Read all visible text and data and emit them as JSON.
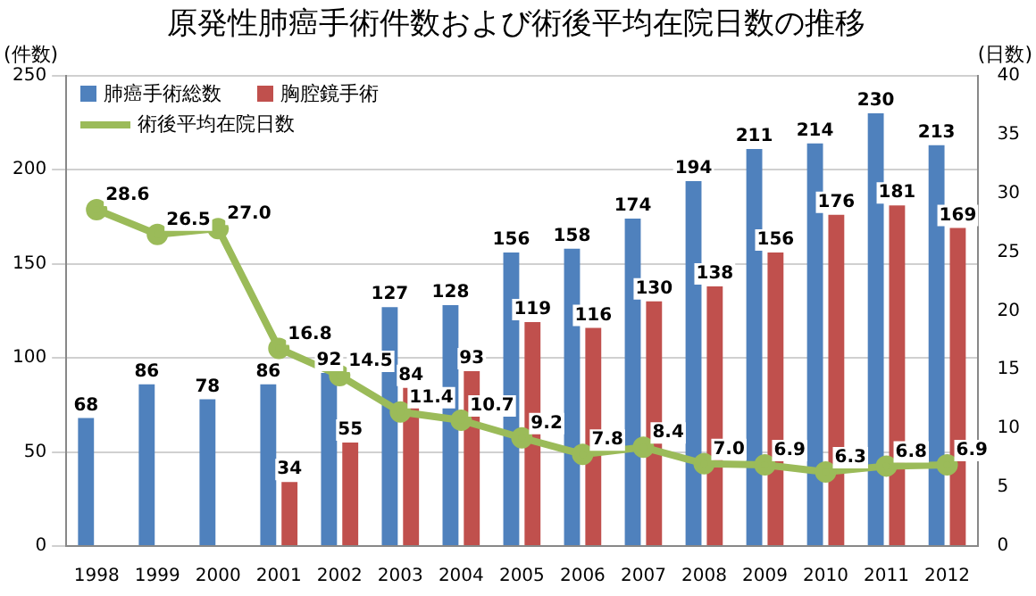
{
  "chart_data": {
    "type": "bar",
    "title": "原発性肺癌手術件数および術後平均在院日数の推移",
    "ylabel": "(件数)",
    "y2label": "(日数)",
    "categories": [
      "1998",
      "1999",
      "2000",
      "2001",
      "2002",
      "2003",
      "2004",
      "2005",
      "2006",
      "2007",
      "2008",
      "2009",
      "2010",
      "2011",
      "2012"
    ],
    "series": [
      {
        "name": "肺癌手術総数",
        "color": "#4f81bd",
        "values": [
          68,
          86,
          78,
          86,
          92,
          127,
          128,
          156,
          158,
          174,
          194,
          211,
          214,
          230,
          213
        ],
        "value_labels": [
          "68",
          "86",
          "78",
          "86",
          "92",
          "127",
          "128",
          "156",
          "158",
          "174",
          "194",
          "211",
          "214",
          "230",
          "213"
        ]
      },
      {
        "name": "胸腔鏡手術",
        "color": "#c0504d",
        "values": [
          null,
          null,
          null,
          34,
          55,
          84,
          93,
          119,
          116,
          130,
          138,
          156,
          176,
          181,
          169
        ],
        "value_labels": [
          null,
          null,
          null,
          "34",
          "55",
          "84",
          "93",
          "119",
          "116",
          "130",
          "138",
          "156",
          "176",
          "181",
          "169"
        ]
      },
      {
        "name": "術後平均在院日数",
        "type": "line",
        "axis": "y2",
        "color": "#9bbb59",
        "values": [
          28.6,
          26.5,
          27.0,
          16.8,
          14.5,
          11.4,
          10.7,
          9.2,
          7.8,
          8.4,
          7.0,
          6.9,
          6.3,
          6.8,
          6.9
        ],
        "value_labels": [
          "28.6",
          "26.5",
          "27.0",
          "16.8",
          "14.5",
          "11.4",
          "10.7",
          "9.2",
          "7.8",
          "8.4",
          "7.0",
          "6.9",
          "6.3",
          "6.8",
          "6.9"
        ]
      }
    ],
    "ylim": [
      0,
      250
    ],
    "yticks": [
      0,
      50,
      100,
      150,
      200,
      250
    ],
    "y2lim": [
      0,
      40
    ],
    "y2ticks": [
      0,
      5,
      10,
      15,
      20,
      25,
      30,
      35,
      40
    ],
    "grid": "y",
    "legend": "top left",
    "marker": "circle"
  }
}
